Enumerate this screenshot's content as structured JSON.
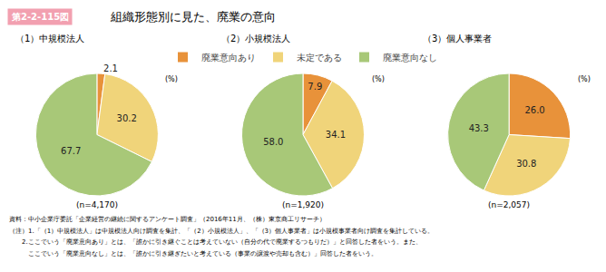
{
  "title": "組織形態別に見た、廃業の意向",
  "annotations": [
    "第2-2-115図",
    "資料：中小企業庁委託「企業経営の継続に関するアンケート調査」（2016年11月、（株）東京商工リサーチ）",
    "（注）1.「（1）中規模法人」は中規模法人向け調査を集計、「（2）小規模法人」、「（3）個人事業者」は小規模事業者向け調査を集計している。",
    "　　2.ここでいう「廃業意向あり」とは、「誰かに引き継ぐことは考えていない（自分の代で廃業するつもりだ）」と回答した者をいう。また、",
    "　　　ここでいう「廃業意向なし」とは、「誰かに引き継ぎたいと考えている（事業の譲渡や売却も含む）」回答した者をいう。"
  ],
  "legend": "top",
  "chart_data": [
    {
      "type": "pie",
      "title": "（1）中規模法人",
      "subtitle": "(n=4,170)",
      "categories": [
        "廃業意向あり",
        "未定である",
        "廃業意向なし"
      ],
      "values": [
        2.1,
        30.2,
        67.7
      ],
      "value_labels": [
        "2.1",
        "30.2",
        "67.7"
      ],
      "colors": [
        "#E8923A",
        "#F0D47A",
        "#A8C878"
      ],
      "data_labels": true,
      "annotations": [
        "(%)"
      ]
    },
    {
      "type": "pie",
      "title": "（2）小規模法人",
      "subtitle": "(n=1,920)",
      "categories": [
        "廃業意向あり",
        "未定である",
        "廃業意向なし"
      ],
      "values": [
        7.9,
        34.1,
        58.0
      ],
      "value_labels": [
        "7.9",
        "34.1",
        "58.0"
      ],
      "colors": [
        "#E8923A",
        "#F0D47A",
        "#A8C878"
      ],
      "data_labels": true,
      "annotations": [
        "(%)"
      ]
    },
    {
      "type": "pie",
      "title": "（3）個人事業者",
      "subtitle": "(n=2,057)",
      "categories": [
        "廃業意向あり",
        "未定である",
        "廃業意向なし"
      ],
      "values": [
        26.0,
        30.8,
        43.3
      ],
      "value_labels": [
        "26.0",
        "30.8",
        "43.3"
      ],
      "colors": [
        "#E8923A",
        "#F0D47A",
        "#A8C878"
      ],
      "data_labels": true,
      "annotations": [
        "(%)"
      ]
    }
  ]
}
